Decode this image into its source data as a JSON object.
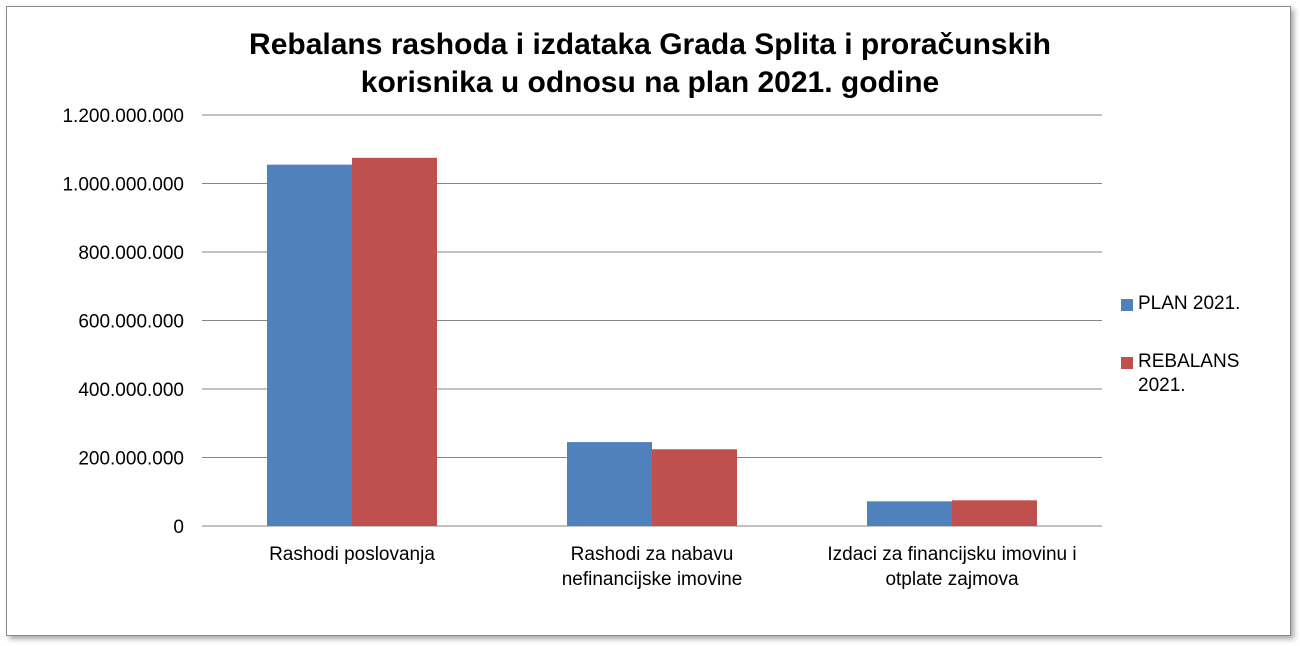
{
  "chart_data": {
    "type": "bar",
    "title": "Rebalans rashoda i izdataka Grada Splita i proračunskih\nkorisnika u odnosu na plan 2021. godine",
    "xlabel": "",
    "ylabel": "",
    "ylim": [
      0,
      1200000000
    ],
    "yticks": [
      0,
      200000000,
      400000000,
      600000000,
      800000000,
      1000000000,
      1200000000
    ],
    "ytick_labels": [
      "0",
      "200.000.000",
      "400.000.000",
      "600.000.000",
      "800.000.000",
      "1.000.000.000",
      "1.200.000.000"
    ],
    "categories": [
      [
        "Rashodi poslovanja"
      ],
      [
        "Rashodi za nabavu",
        "nefinancijske imovine"
      ],
      [
        "Izdaci za financijsku imovinu i",
        "otplate zajmova"
      ]
    ],
    "series": [
      {
        "name": "PLAN 2021.",
        "color": "#4f81bd",
        "values": [
          1055000000,
          245000000,
          72000000
        ]
      },
      {
        "name": "REBALANS 2021.",
        "color": "#c0504d",
        "values": [
          1075000000,
          224000000,
          75000000
        ]
      }
    ],
    "grid": true,
    "legend_position": "right"
  }
}
